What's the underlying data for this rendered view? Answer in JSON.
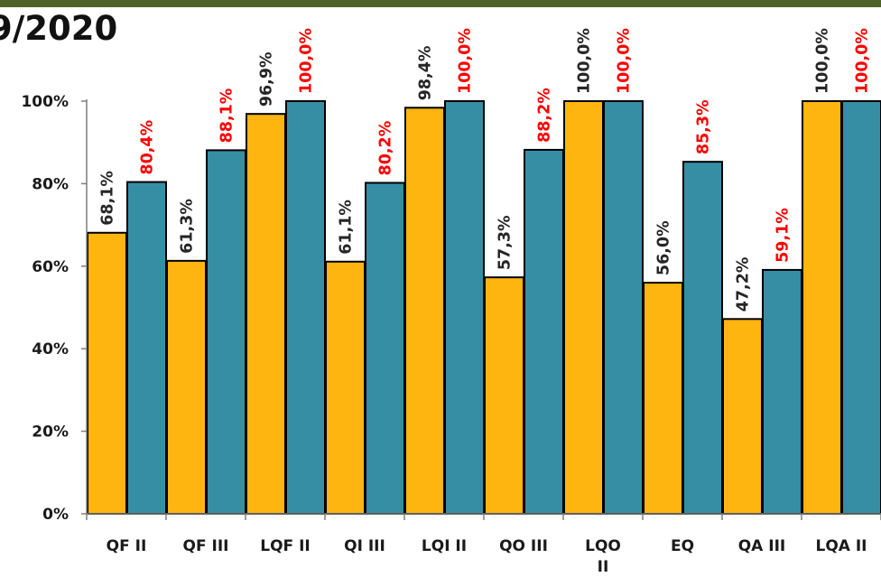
{
  "header": {
    "title": "9/2020"
  },
  "colors": {
    "topbar": "#4f6228",
    "series_a": "#ffb50f",
    "series_b": "#368ea5",
    "label_a": "#262626",
    "label_b": "#ff0000"
  },
  "chart_data": {
    "type": "bar",
    "categories": [
      "QF II",
      "QF III",
      "LQF II",
      "QI III",
      "LQI II",
      "QO III",
      "LQO II",
      "EQ",
      "QA III",
      "LQA II"
    ],
    "series": [
      {
        "values": [
          68.1,
          61.3,
          96.9,
          61.1,
          98.4,
          57.3,
          100.0,
          56.0,
          47.2,
          100.0
        ],
        "labels": [
          "68,1%",
          "61,3%",
          "96,9%",
          "61,1%",
          "98,4%",
          "57,3%",
          "100,0%",
          "56,0%",
          "47,2%",
          "100,0%"
        ]
      },
      {
        "values": [
          80.4,
          88.1,
          100.0,
          80.2,
          100.0,
          88.2,
          100.0,
          85.3,
          59.1,
          100.0
        ],
        "labels": [
          "80,4%",
          "88,1%",
          "100,0%",
          "80,2%",
          "100,0%",
          "88,2%",
          "100,0%",
          "85,3%",
          "59,1%",
          "100,0%"
        ]
      }
    ],
    "yticks": [
      "0%",
      "20%",
      "40%",
      "60%",
      "80%",
      "100%"
    ],
    "ylim": [
      0,
      100
    ],
    "grid": false,
    "legend": "none"
  }
}
